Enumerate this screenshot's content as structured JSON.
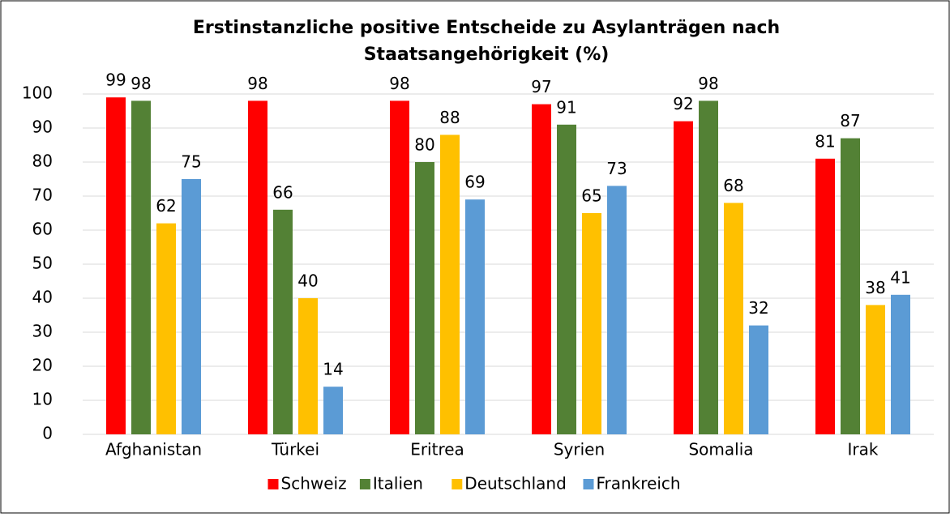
{
  "chart_data": {
    "type": "bar",
    "title": [
      "Erstinstanzliche positive Entscheide zu Asylanträgen nach",
      "Staatsangehörigkeit (%)"
    ],
    "categories": [
      "Afghanistan",
      "Türkei",
      "Eritrea",
      "Syrien",
      "Somalia",
      "Irak"
    ],
    "series": [
      {
        "name": "Schweiz",
        "color": "#ff0000",
        "values": [
          99,
          98,
          98,
          97,
          92,
          81
        ]
      },
      {
        "name": "Italien",
        "color": "#538135",
        "values": [
          98,
          66,
          80,
          91,
          98,
          87
        ]
      },
      {
        "name": "Deutschland",
        "color": "#ffc000",
        "values": [
          62,
          40,
          88,
          65,
          68,
          38
        ]
      },
      {
        "name": "Frankreich",
        "color": "#5b9bd5",
        "values": [
          75,
          14,
          69,
          73,
          32,
          41
        ]
      }
    ],
    "ylim": [
      0,
      100
    ],
    "yticks": [
      0,
      10,
      20,
      30,
      40,
      50,
      60,
      70,
      80,
      90,
      100
    ],
    "grid": true,
    "legend": "bottom"
  }
}
